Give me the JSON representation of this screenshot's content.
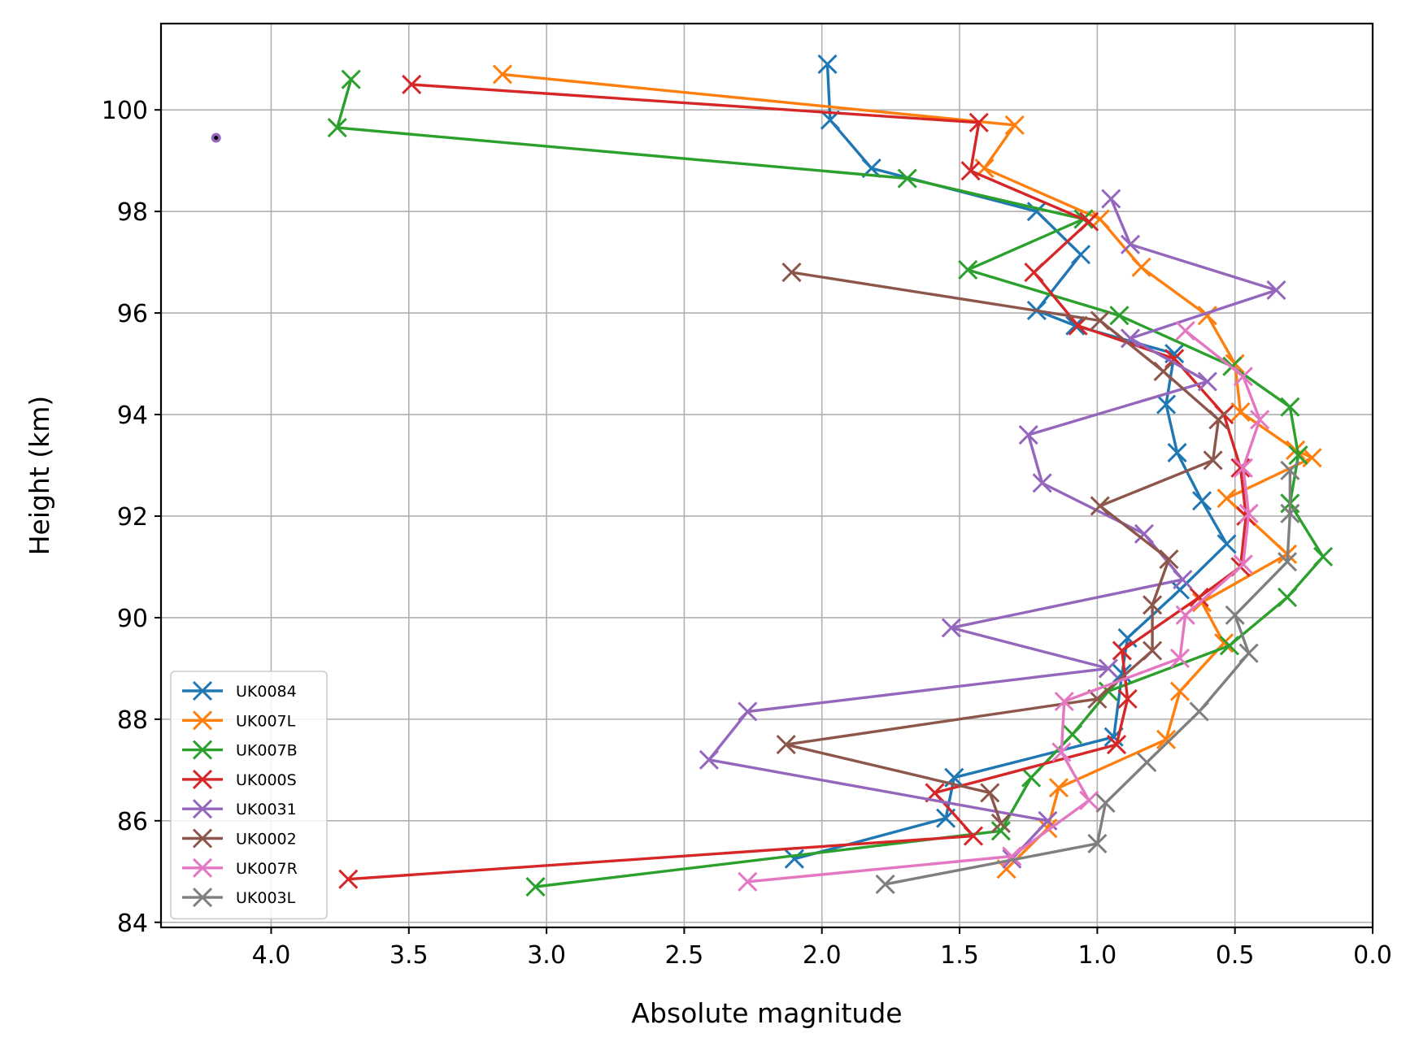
{
  "chart_data": {
    "type": "line",
    "title": "",
    "xlabel": "Absolute magnitude",
    "ylabel": "Height (km)",
    "xlim": [
      4.4,
      0.0
    ],
    "x_inverted": true,
    "ylim": [
      83.9,
      101.7
    ],
    "xticks": [
      "4.0",
      "3.5",
      "3.0",
      "2.5",
      "2.0",
      "1.5",
      "1.0",
      "0.5",
      "0.0"
    ],
    "xtick_values": [
      4.0,
      3.5,
      3.0,
      2.5,
      2.0,
      1.5,
      1.0,
      0.5,
      0.0
    ],
    "yticks": [
      "84",
      "86",
      "88",
      "90",
      "92",
      "94",
      "96",
      "98",
      "100"
    ],
    "ytick_values": [
      84,
      86,
      88,
      90,
      92,
      94,
      96,
      98,
      100
    ],
    "grid": true,
    "legend_position": "lower-left",
    "marker": "x",
    "series": [
      {
        "name": "UK0084",
        "color": "#1f77b4",
        "points": [
          [
            1.98,
            100.9
          ],
          [
            1.97,
            99.8
          ],
          [
            1.82,
            98.85
          ],
          [
            1.22,
            98.0
          ],
          [
            1.06,
            97.15
          ],
          [
            1.22,
            96.05
          ],
          [
            1.08,
            95.75
          ],
          [
            0.72,
            95.2
          ],
          [
            0.75,
            94.2
          ],
          [
            0.71,
            93.25
          ],
          [
            0.62,
            92.3
          ],
          [
            0.53,
            91.45
          ],
          [
            0.7,
            90.55
          ],
          [
            0.89,
            89.6
          ],
          [
            0.91,
            88.9
          ],
          [
            0.94,
            87.65
          ],
          [
            1.52,
            86.85
          ],
          [
            1.55,
            86.05
          ],
          [
            2.1,
            85.25
          ]
        ]
      },
      {
        "name": "UK007L",
        "color": "#ff7f0e",
        "points": [
          [
            3.16,
            100.7
          ],
          [
            1.3,
            99.7
          ],
          [
            1.41,
            98.85
          ],
          [
            0.99,
            97.85
          ],
          [
            0.84,
            96.9
          ],
          [
            0.6,
            95.95
          ],
          [
            0.5,
            95.0
          ],
          [
            0.48,
            94.05
          ],
          [
            0.28,
            93.3
          ],
          [
            0.22,
            93.15
          ],
          [
            0.53,
            92.35
          ],
          [
            0.31,
            91.25
          ],
          [
            0.62,
            90.3
          ],
          [
            0.54,
            89.5
          ],
          [
            0.7,
            88.55
          ],
          [
            0.75,
            87.6
          ],
          [
            1.14,
            86.65
          ],
          [
            1.18,
            85.85
          ],
          [
            1.33,
            85.05
          ]
        ]
      },
      {
        "name": "UK007B",
        "color": "#2ca02c",
        "points": [
          [
            3.71,
            100.6
          ],
          [
            3.76,
            99.65
          ],
          [
            1.69,
            98.65
          ],
          [
            1.05,
            97.85
          ],
          [
            1.47,
            96.85
          ],
          [
            0.92,
            95.95
          ],
          [
            0.51,
            94.95
          ],
          [
            0.3,
            94.15
          ],
          [
            0.27,
            93.2
          ],
          [
            0.3,
            92.25
          ],
          [
            0.18,
            91.2
          ],
          [
            0.31,
            90.4
          ],
          [
            0.52,
            89.45
          ],
          [
            0.96,
            88.55
          ],
          [
            1.09,
            87.7
          ],
          [
            1.24,
            86.85
          ],
          [
            1.35,
            85.8
          ],
          [
            3.04,
            84.7
          ]
        ]
      },
      {
        "name": "UK000S",
        "color": "#d62728",
        "points": [
          [
            3.49,
            100.5
          ],
          [
            1.43,
            99.75
          ],
          [
            1.46,
            98.8
          ],
          [
            1.03,
            97.8
          ],
          [
            1.23,
            96.8
          ],
          [
            1.07,
            95.75
          ],
          [
            0.72,
            95.1
          ],
          [
            0.54,
            94.0
          ],
          [
            0.48,
            92.95
          ],
          [
            0.46,
            92.0
          ],
          [
            0.48,
            91.0
          ],
          [
            0.63,
            90.4
          ],
          [
            0.91,
            89.35
          ],
          [
            0.89,
            88.4
          ],
          [
            0.93,
            87.5
          ],
          [
            1.59,
            86.55
          ],
          [
            1.45,
            85.7
          ],
          [
            3.72,
            84.85
          ]
        ]
      },
      {
        "name": "UK0031",
        "color": "#9467bd",
        "points": [
          [
            0.95,
            98.25
          ],
          [
            0.88,
            97.35
          ],
          [
            0.35,
            96.45
          ],
          [
            0.88,
            95.5
          ],
          [
            0.6,
            94.65
          ],
          [
            1.25,
            93.6
          ],
          [
            1.2,
            92.65
          ],
          [
            0.83,
            91.65
          ],
          [
            0.69,
            90.75
          ],
          [
            1.53,
            89.8
          ],
          [
            0.96,
            89.0
          ],
          [
            2.27,
            88.15
          ],
          [
            2.41,
            87.2
          ],
          [
            1.18,
            86.0
          ],
          [
            1.31,
            85.25
          ]
        ]
      },
      {
        "name": "UK0002",
        "color": "#8c564b",
        "points": [
          [
            2.11,
            96.8
          ],
          [
            0.99,
            95.85
          ],
          [
            0.76,
            94.85
          ],
          [
            0.56,
            93.9
          ],
          [
            0.58,
            93.1
          ],
          [
            0.99,
            92.2
          ],
          [
            0.74,
            91.15
          ],
          [
            0.8,
            90.25
          ],
          [
            0.8,
            89.35
          ],
          [
            1.0,
            88.4
          ],
          [
            2.13,
            87.5
          ],
          [
            1.39,
            86.55
          ],
          [
            1.35,
            85.95
          ]
        ]
      },
      {
        "name": "UK007R",
        "color": "#e377c2",
        "points": [
          [
            0.68,
            95.65
          ],
          [
            0.47,
            94.75
          ],
          [
            0.41,
            93.9
          ],
          [
            0.47,
            92.95
          ],
          [
            0.45,
            92.05
          ],
          [
            0.47,
            91.05
          ],
          [
            0.68,
            90.05
          ],
          [
            0.7,
            89.2
          ],
          [
            1.12,
            88.35
          ],
          [
            1.13,
            87.35
          ],
          [
            1.03,
            86.4
          ],
          [
            1.31,
            85.3
          ],
          [
            2.27,
            84.8
          ]
        ]
      },
      {
        "name": "UK003L",
        "color": "#7f7f7f",
        "points": [
          [
            0.3,
            92.9
          ],
          [
            0.3,
            92.05
          ],
          [
            0.31,
            91.1
          ],
          [
            0.5,
            90.05
          ],
          [
            0.45,
            89.3
          ],
          [
            0.63,
            88.15
          ],
          [
            0.82,
            87.15
          ],
          [
            0.97,
            86.35
          ],
          [
            1.0,
            85.55
          ],
          [
            1.77,
            84.75
          ]
        ]
      }
    ],
    "extra_point": {
      "x": 4.2,
      "y": 99.45,
      "color": "#9467bd"
    }
  }
}
